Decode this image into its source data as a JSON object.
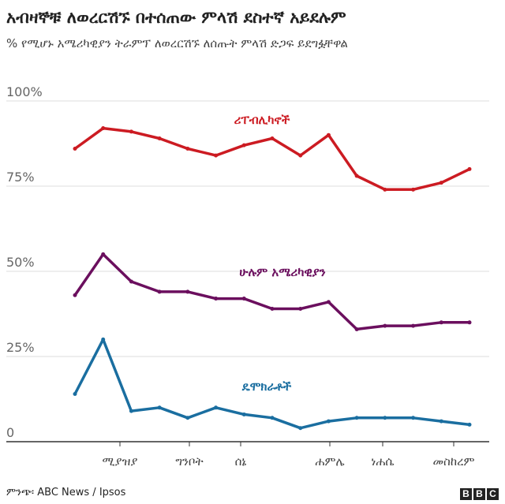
{
  "title": "አብዛኞቹ ለወረርሽኙ በተሰጠው ምላሽ ደስተኛ አይደሉም",
  "subtitle": "% የሚሆኑ አሜሪካዊያን ትራምፕ ለወረርሽኙ ለሰጡት ምላሽ ድጋፍ ይደግፏቸዋል",
  "source": "ምንጭ፡ ABC News / Ipsos",
  "logo": [
    "B",
    "B",
    "C"
  ],
  "chart_data": {
    "type": "line",
    "ylim": [
      0,
      100
    ],
    "y_ticks": [
      0,
      25,
      50,
      75,
      100
    ],
    "y_tick_labels": [
      "0",
      "25%",
      "50%",
      "75%",
      "100%"
    ],
    "x_tick_labels": [
      "ሚያዝያ",
      "ግንቦት",
      "ሰኔ",
      "ሐምሌ",
      "ነሐሴ",
      "መስከረም"
    ],
    "x": [
      1,
      2,
      3,
      4,
      5,
      6,
      7,
      8,
      9,
      10,
      11,
      12,
      13,
      14,
      15
    ],
    "series": [
      {
        "name": "ሪፐብሊካኖች",
        "color": "#cc1b22",
        "values": [
          86,
          92,
          91,
          89,
          86,
          84,
          87,
          89,
          84,
          90,
          78,
          74,
          74,
          76,
          80
        ]
      },
      {
        "name": "ሁሉም አሜሪካዊያን",
        "color": "#6b0f5e",
        "values": [
          43,
          55,
          47,
          44,
          44,
          42,
          42,
          39,
          39,
          41,
          33,
          34,
          34,
          35,
          35
        ]
      },
      {
        "name": "ዴሞክራቶች",
        "color": "#1a6ea0",
        "values": [
          14,
          30,
          9,
          10,
          7,
          10,
          8,
          7,
          4,
          6,
          7,
          7,
          7,
          6,
          5
        ]
      }
    ]
  }
}
